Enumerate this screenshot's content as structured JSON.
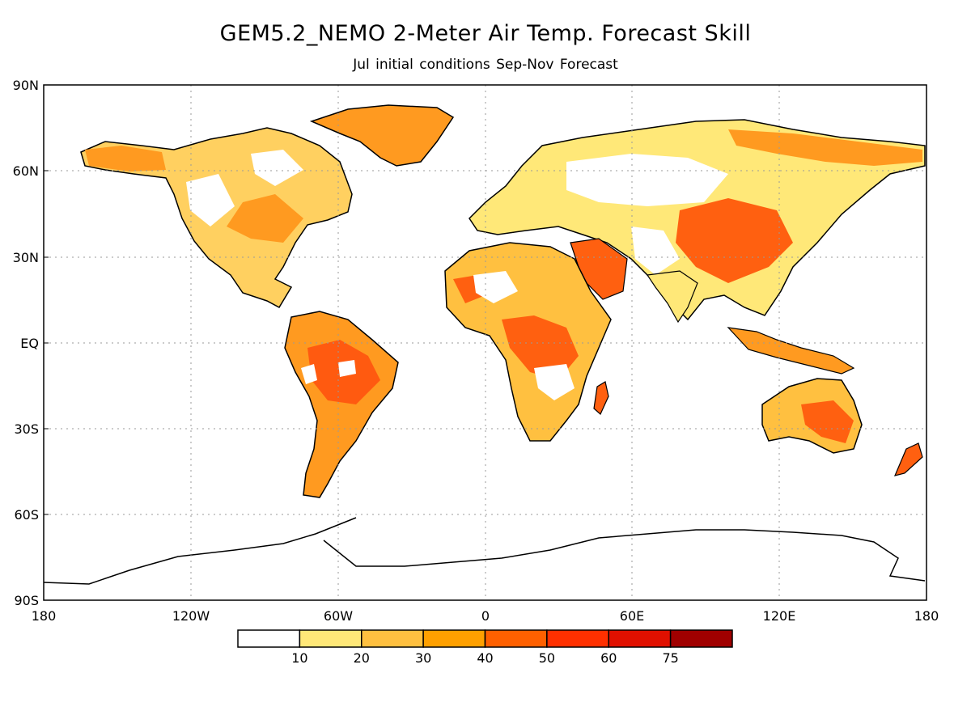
{
  "header": {
    "title": "GEM5.2_NEMO 2-Meter Air Temp. Forecast Skill",
    "subtitle": "Jul initial conditions   Sep-Nov Forecast"
  },
  "map": {
    "projection": "equirectangular",
    "lat_ticks": [
      "90N",
      "60N",
      "30N",
      "EQ",
      "30S",
      "60S",
      "90S"
    ],
    "lon_ticks": [
      "180",
      "120W",
      "60W",
      "0",
      "60E",
      "120E",
      "180"
    ],
    "grid": "dotted",
    "coastline_color": "#000000"
  },
  "legend": {
    "colors": [
      "#ffffff",
      "#ffe878",
      "#ffc040",
      "#ffa000",
      "#ff6000",
      "#ff3000",
      "#e01000",
      "#a00000"
    ],
    "labels": [
      "10",
      "20",
      "30",
      "40",
      "50",
      "60",
      "75"
    ]
  }
}
